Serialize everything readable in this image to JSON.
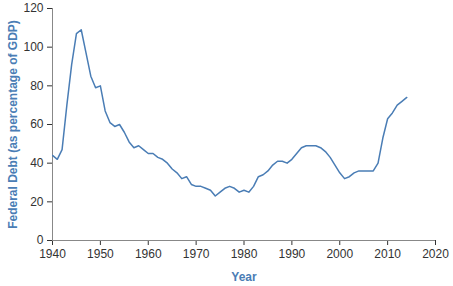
{
  "chart_data": {
    "type": "line",
    "x_label": "Year",
    "y_label": "Federal Debt (as percentage of GDP)",
    "x": [
      1940,
      1941,
      1942,
      1943,
      1944,
      1945,
      1946,
      1947,
      1948,
      1949,
      1950,
      1951,
      1952,
      1953,
      1954,
      1955,
      1956,
      1957,
      1958,
      1959,
      1960,
      1961,
      1962,
      1963,
      1964,
      1965,
      1966,
      1967,
      1968,
      1969,
      1970,
      1971,
      1972,
      1973,
      1974,
      1975,
      1976,
      1977,
      1978,
      1979,
      1980,
      1981,
      1982,
      1983,
      1984,
      1985,
      1986,
      1987,
      1988,
      1989,
      1990,
      1991,
      1992,
      1993,
      1994,
      1995,
      1996,
      1997,
      1998,
      1999,
      2000,
      2001,
      2002,
      2003,
      2004,
      2005,
      2006,
      2007,
      2008,
      2009,
      2010,
      2011,
      2012,
      2013,
      2014
    ],
    "values": [
      44,
      42,
      47,
      70,
      91,
      107,
      109,
      97,
      85,
      79,
      80,
      67,
      61,
      59,
      60,
      56,
      51,
      48,
      49,
      47,
      45,
      45,
      43,
      42,
      40,
      37,
      35,
      32,
      33,
      29,
      28,
      28,
      27,
      26,
      23,
      25,
      27,
      28,
      27,
      25,
      26,
      25,
      28,
      33,
      34,
      36,
      39,
      41,
      41,
      40,
      42,
      45,
      48,
      49,
      49,
      49,
      48,
      46,
      43,
      39,
      35,
      32,
      33,
      35,
      36,
      36,
      36,
      36,
      40,
      53,
      63,
      66,
      70,
      72,
      74
    ],
    "color": "#4a7db5",
    "xlim": [
      1940,
      2020
    ],
    "xticks": [
      1940,
      1950,
      1960,
      1970,
      1980,
      1990,
      2000,
      2010,
      2020
    ],
    "ylim": [
      0,
      120
    ],
    "yticks": [
      0,
      20,
      40,
      60,
      80,
      100,
      120
    ],
    "grid": false
  }
}
